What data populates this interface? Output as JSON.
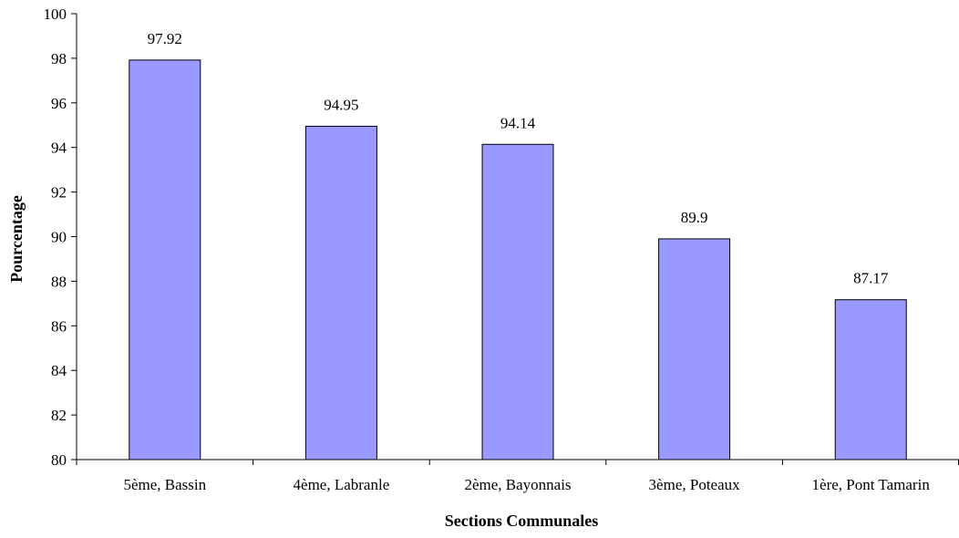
{
  "chart_data": {
    "type": "bar",
    "title": "",
    "xlabel": "Sections Communales",
    "ylabel": "Pourcentage",
    "categories": [
      "5ème, Bassin",
      "4ème, Labranle",
      "2ème, Bayonnais",
      "3ème, Poteaux",
      "1ère, Pont Tamarin"
    ],
    "values": [
      97.92,
      94.95,
      94.14,
      89.9,
      87.17
    ],
    "data_labels": [
      "97.92",
      "94.95",
      "94.14",
      "89.9",
      "87.17"
    ],
    "ylim": [
      80,
      100
    ],
    "yticks": [
      "80",
      "82",
      "84",
      "86",
      "88",
      "90",
      "92",
      "94",
      "96",
      "98",
      "100"
    ],
    "grid": false,
    "legend": "none",
    "colors": {
      "bar_fill": "#9999ff",
      "bar_stroke": "#000000",
      "axis": "#000000",
      "background": "#ffffff"
    }
  }
}
